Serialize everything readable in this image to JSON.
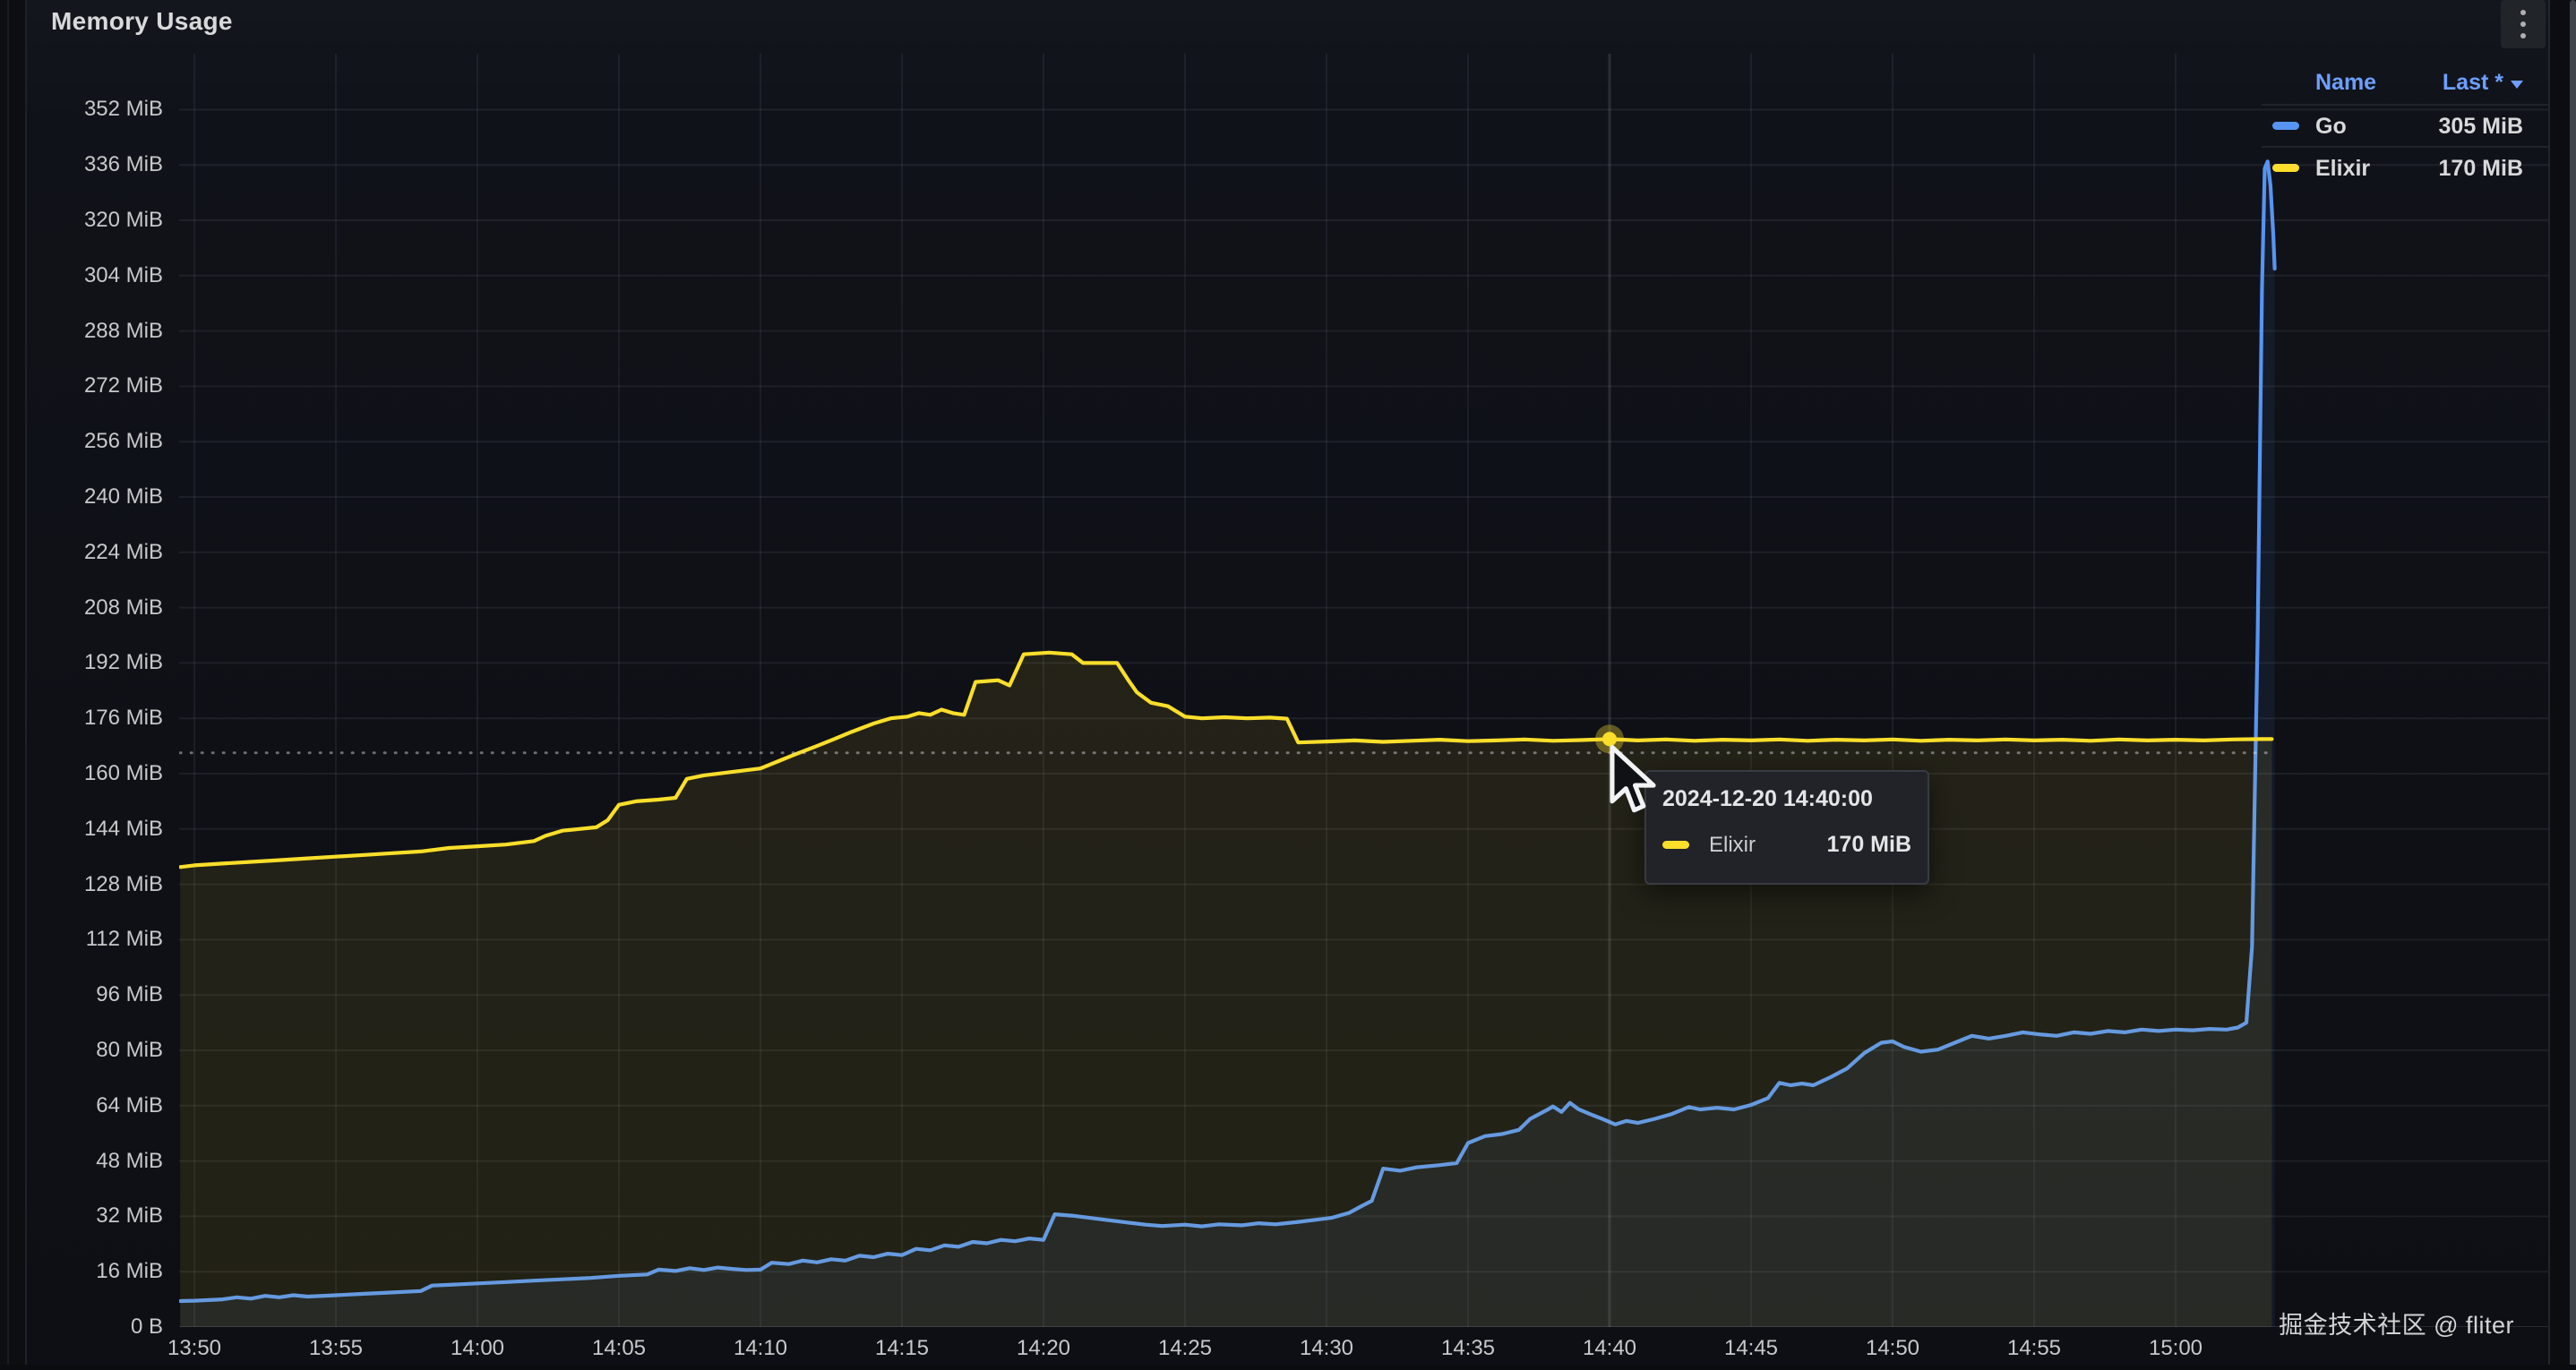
{
  "panel": {
    "title": "Memory Usage"
  },
  "legend": {
    "columns": [
      "Name",
      "Last *"
    ],
    "series": [
      {
        "name": "Go",
        "last": "305 MiB",
        "color": "#5794F2"
      },
      {
        "name": "Elixir",
        "last": "170 MiB",
        "color": "#FADE2A"
      }
    ]
  },
  "tooltip": {
    "timestamp": "2024-12-20 14:40:00",
    "rows": [
      {
        "name": "Elixir",
        "value": "170 MiB",
        "color": "#FADE2A"
      }
    ]
  },
  "watermark": "掘金技术社区 @ fliter",
  "chart_data": {
    "type": "line",
    "title": "Memory Usage",
    "unit": "MiB",
    "grid": true,
    "legend_position": "top-right-table",
    "x_axis": {
      "tick_interval_minutes": 5,
      "ticks": [
        {
          "label": "13:50",
          "t": 0
        },
        {
          "label": "13:55",
          "t": 5
        },
        {
          "label": "14:00",
          "t": 10
        },
        {
          "label": "14:05",
          "t": 15
        },
        {
          "label": "14:10",
          "t": 20
        },
        {
          "label": "14:15",
          "t": 25
        },
        {
          "label": "14:20",
          "t": 30
        },
        {
          "label": "14:25",
          "t": 35
        },
        {
          "label": "14:30",
          "t": 40
        },
        {
          "label": "14:35",
          "t": 45
        },
        {
          "label": "14:40",
          "t": 50
        },
        {
          "label": "14:45",
          "t": 55
        },
        {
          "label": "14:50",
          "t": 60
        },
        {
          "label": "14:55",
          "t": 65
        },
        {
          "label": "15:00",
          "t": 70
        }
      ]
    },
    "y_axis": {
      "min": 0,
      "max": 368,
      "tick_step_mib": 16,
      "ticks": [
        {
          "label": "352 MiB",
          "value": 352
        },
        {
          "label": "336 MiB",
          "value": 336
        },
        {
          "label": "320 MiB",
          "value": 320
        },
        {
          "label": "304 MiB",
          "value": 304
        },
        {
          "label": "288 MiB",
          "value": 288
        },
        {
          "label": "272 MiB",
          "value": 272
        },
        {
          "label": "256 MiB",
          "value": 256
        },
        {
          "label": "240 MiB",
          "value": 240
        },
        {
          "label": "224 MiB",
          "value": 224
        },
        {
          "label": "208 MiB",
          "value": 208
        },
        {
          "label": "192 MiB",
          "value": 192
        },
        {
          "label": "176 MiB",
          "value": 176
        },
        {
          "label": "160 MiB",
          "value": 160
        },
        {
          "label": "144 MiB",
          "value": 144
        },
        {
          "label": "128 MiB",
          "value": 128
        },
        {
          "label": "112 MiB",
          "value": 112
        },
        {
          "label": "96 MiB",
          "value": 96
        },
        {
          "label": "80 MiB",
          "value": 80
        },
        {
          "label": "64 MiB",
          "value": 64
        },
        {
          "label": "48 MiB",
          "value": 48
        },
        {
          "label": "32 MiB",
          "value": 32
        },
        {
          "label": "16 MiB",
          "value": 16
        },
        {
          "label": "0 B",
          "value": 0
        }
      ]
    },
    "reference_line": {
      "value": 166,
      "style": "dashed"
    },
    "crosshair": {
      "t": 50,
      "time": "14:40"
    },
    "hover_point": {
      "series": "Elixir",
      "t": 50,
      "value": 170
    },
    "series": [
      {
        "name": "Go",
        "color": "#5794F2",
        "fill_opacity": 0.08,
        "last_mib": 305,
        "points": [
          [
            -0.5,
            7.5
          ],
          [
            0,
            7.6
          ],
          [
            1,
            8
          ],
          [
            1.5,
            8.6
          ],
          [
            2,
            8.2
          ],
          [
            2.5,
            9
          ],
          [
            3,
            8.6
          ],
          [
            3.5,
            9.2
          ],
          [
            4,
            8.8
          ],
          [
            5,
            9.2
          ],
          [
            6,
            9.6
          ],
          [
            7,
            10
          ],
          [
            8,
            10.4
          ],
          [
            8.4,
            12
          ],
          [
            9,
            12.2
          ],
          [
            10,
            12.6
          ],
          [
            11,
            13
          ],
          [
            12,
            13.4
          ],
          [
            13,
            13.8
          ],
          [
            14,
            14.2
          ],
          [
            15,
            14.8
          ],
          [
            16,
            15.2
          ],
          [
            16.4,
            16.6
          ],
          [
            17,
            16.2
          ],
          [
            17.5,
            17
          ],
          [
            18,
            16.5
          ],
          [
            18.5,
            17.2
          ],
          [
            19,
            16.8
          ],
          [
            19.5,
            16.5
          ],
          [
            20,
            16.6
          ],
          [
            20.4,
            18.6
          ],
          [
            21,
            18.2
          ],
          [
            21.5,
            19.2
          ],
          [
            22,
            18.7
          ],
          [
            22.5,
            19.6
          ],
          [
            23,
            19.2
          ],
          [
            23.5,
            20.6
          ],
          [
            24,
            20.2
          ],
          [
            24.5,
            21.2
          ],
          [
            25,
            20.8
          ],
          [
            25.5,
            22.6
          ],
          [
            26,
            22.2
          ],
          [
            26.5,
            23.6
          ],
          [
            27,
            23.2
          ],
          [
            27.5,
            24.6
          ],
          [
            28,
            24.2
          ],
          [
            28.5,
            25.2
          ],
          [
            29,
            24.8
          ],
          [
            29.5,
            25.6
          ],
          [
            30,
            25.2
          ],
          [
            30.4,
            32.6
          ],
          [
            31,
            32.2
          ],
          [
            31.6,
            31.6
          ],
          [
            32.2,
            31
          ],
          [
            33,
            30.2
          ],
          [
            33.6,
            29.6
          ],
          [
            34.2,
            29.2
          ],
          [
            35,
            29.6
          ],
          [
            35.6,
            29.1
          ],
          [
            36.2,
            29.7
          ],
          [
            37,
            29.4
          ],
          [
            37.6,
            30
          ],
          [
            38.2,
            29.7
          ],
          [
            39,
            30.4
          ],
          [
            39.6,
            31
          ],
          [
            40.2,
            31.6
          ],
          [
            40.8,
            33
          ],
          [
            41.2,
            34.8
          ],
          [
            41.6,
            36.5
          ],
          [
            42,
            45.8
          ],
          [
            42.6,
            45.2
          ],
          [
            43.2,
            46.2
          ],
          [
            44,
            46.8
          ],
          [
            44.6,
            47.4
          ],
          [
            45,
            53.2
          ],
          [
            45.6,
            55.2
          ],
          [
            46.2,
            55.8
          ],
          [
            46.8,
            57
          ],
          [
            47.2,
            60.2
          ],
          [
            47.8,
            62.8
          ],
          [
            48,
            63.8
          ],
          [
            48.3,
            62.2
          ],
          [
            48.6,
            64.8
          ],
          [
            48.9,
            63
          ],
          [
            49.3,
            61.6
          ],
          [
            49.8,
            60
          ],
          [
            50.2,
            58.6
          ],
          [
            50.6,
            59.6
          ],
          [
            51,
            59
          ],
          [
            51.6,
            60.2
          ],
          [
            52.2,
            61.6
          ],
          [
            52.8,
            63.6
          ],
          [
            53.2,
            62.9
          ],
          [
            53.8,
            63.4
          ],
          [
            54.4,
            62.9
          ],
          [
            55,
            64.2
          ],
          [
            55.6,
            66.2
          ],
          [
            56,
            70.6
          ],
          [
            56.4,
            69.9
          ],
          [
            56.8,
            70.4
          ],
          [
            57.2,
            69.9
          ],
          [
            57.8,
            72.2
          ],
          [
            58.4,
            74.8
          ],
          [
            59,
            79.2
          ],
          [
            59.6,
            82.2
          ],
          [
            60,
            82.6
          ],
          [
            60.4,
            81
          ],
          [
            61,
            79.6
          ],
          [
            61.6,
            80.2
          ],
          [
            62.2,
            82.2
          ],
          [
            62.8,
            84.2
          ],
          [
            63.4,
            83.4
          ],
          [
            64,
            84.2
          ],
          [
            64.6,
            85.2
          ],
          [
            65.2,
            84.6
          ],
          [
            65.8,
            84.2
          ],
          [
            66.4,
            85.2
          ],
          [
            67,
            84.8
          ],
          [
            67.6,
            85.6
          ],
          [
            68.2,
            85.2
          ],
          [
            68.8,
            86
          ],
          [
            69.4,
            85.6
          ],
          [
            70,
            86
          ],
          [
            70.6,
            85.8
          ],
          [
            71.2,
            86.2
          ],
          [
            71.8,
            86
          ],
          [
            72.2,
            86.6
          ],
          [
            72.5,
            88
          ],
          [
            72.7,
            110
          ],
          [
            72.9,
            200
          ],
          [
            73.05,
            300
          ],
          [
            73.15,
            335
          ],
          [
            73.25,
            337
          ],
          [
            73.35,
            330
          ],
          [
            73.45,
            316
          ],
          [
            73.5,
            306
          ]
        ]
      },
      {
        "name": "Elixir",
        "color": "#FADE2A",
        "fill_opacity": 0.09,
        "last_mib": 170,
        "points": [
          [
            -0.5,
            133
          ],
          [
            0,
            133.5
          ],
          [
            1,
            134
          ],
          [
            2,
            134.5
          ],
          [
            3,
            135
          ],
          [
            4,
            135.5
          ],
          [
            5,
            136
          ],
          [
            6,
            136.5
          ],
          [
            7,
            137
          ],
          [
            8,
            137.5
          ],
          [
            9,
            138.5
          ],
          [
            10,
            139
          ],
          [
            11,
            139.5
          ],
          [
            12,
            140.5
          ],
          [
            12.4,
            142
          ],
          [
            13,
            143.5
          ],
          [
            13.6,
            144
          ],
          [
            14.2,
            144.5
          ],
          [
            14.6,
            146.5
          ],
          [
            15,
            151
          ],
          [
            15.6,
            152
          ],
          [
            16.4,
            152.5
          ],
          [
            17,
            153
          ],
          [
            17.4,
            158.5
          ],
          [
            18,
            159.5
          ],
          [
            19,
            160.5
          ],
          [
            20,
            161.5
          ],
          [
            20.6,
            163.5
          ],
          [
            21.2,
            165.5
          ],
          [
            22,
            168
          ],
          [
            22.6,
            170
          ],
          [
            23.2,
            172
          ],
          [
            24,
            174.5
          ],
          [
            24.6,
            176
          ],
          [
            25.2,
            176.5
          ],
          [
            25.6,
            177.5
          ],
          [
            26,
            177
          ],
          [
            26.4,
            178.5
          ],
          [
            26.8,
            177.5
          ],
          [
            27.2,
            177
          ],
          [
            27.6,
            186.5
          ],
          [
            28.4,
            187
          ],
          [
            28.8,
            185.5
          ],
          [
            29.3,
            194.5
          ],
          [
            30.2,
            195
          ],
          [
            31,
            194.5
          ],
          [
            31.4,
            192
          ],
          [
            32.6,
            192
          ],
          [
            33,
            187
          ],
          [
            33.3,
            183.5
          ],
          [
            33.8,
            180.5
          ],
          [
            34.4,
            179.5
          ],
          [
            35,
            176.5
          ],
          [
            35.6,
            176
          ],
          [
            36.4,
            176.3
          ],
          [
            37.2,
            176
          ],
          [
            38,
            176.2
          ],
          [
            38.6,
            175.9
          ],
          [
            39,
            169
          ],
          [
            40,
            169.3
          ],
          [
            41,
            169.6
          ],
          [
            42,
            169.2
          ],
          [
            43,
            169.5
          ],
          [
            44,
            169.8
          ],
          [
            45,
            169.4
          ],
          [
            46,
            169.6
          ],
          [
            47,
            169.9
          ],
          [
            48,
            169.5
          ],
          [
            49,
            169.7
          ],
          [
            50,
            170
          ],
          [
            51,
            169.6
          ],
          [
            52,
            169.9
          ],
          [
            53,
            169.5
          ],
          [
            54,
            169.8
          ],
          [
            55,
            169.6
          ],
          [
            56,
            169.9
          ],
          [
            57,
            169.5
          ],
          [
            58,
            169.8
          ],
          [
            59,
            169.6
          ],
          [
            60,
            169.9
          ],
          [
            61,
            169.5
          ],
          [
            62,
            169.8
          ],
          [
            63,
            169.6
          ],
          [
            64,
            169.9
          ],
          [
            65,
            169.6
          ],
          [
            66,
            169.8
          ],
          [
            67,
            169.5
          ],
          [
            68,
            169.9
          ],
          [
            69,
            169.6
          ],
          [
            70,
            169.8
          ],
          [
            71,
            169.6
          ],
          [
            72,
            169.9
          ],
          [
            73,
            170
          ],
          [
            73.4,
            170
          ]
        ]
      }
    ]
  }
}
